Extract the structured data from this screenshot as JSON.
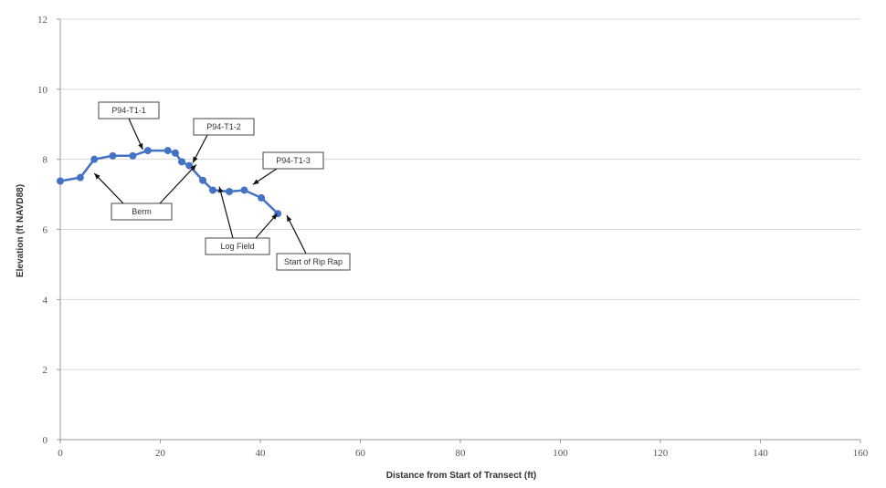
{
  "chart_data": {
    "type": "scatter",
    "title": "",
    "xlabel": "Distance from Start of Transect (ft)",
    "ylabel": "Elevation (ft NAVD88)",
    "xlim": [
      0,
      160
    ],
    "ylim": [
      0,
      12
    ],
    "x_ticks": [
      0,
      20,
      40,
      60,
      80,
      100,
      120,
      140,
      160
    ],
    "y_ticks": [
      0,
      2,
      4,
      6,
      8,
      10,
      12
    ],
    "grid": "horizontal",
    "legend": "none",
    "series_color": "#4472c4",
    "series": [
      {
        "x": [
          0,
          4,
          6.8,
          10.5,
          14.5,
          17.5,
          21.5,
          23,
          24.3,
          25.8,
          28.5,
          30.5,
          33.8,
          36.8,
          40.2,
          43.5
        ],
        "y": [
          7.38,
          7.48,
          8.0,
          8.1,
          8.1,
          8.25,
          8.25,
          8.18,
          7.93,
          7.82,
          7.4,
          7.12,
          7.08,
          7.12,
          6.9,
          6.45
        ]
      }
    ],
    "annotations": [
      {
        "text": "P94-T1-1",
        "target": [
          16.5,
          8.28
        ]
      },
      {
        "text": "P94-T1-2",
        "target": [
          26.5,
          7.9
        ]
      },
      {
        "text": "P94-T1-3",
        "target": [
          38.5,
          7.28
        ]
      },
      {
        "text": "Berm",
        "target": [
          6.8,
          7.6
        ]
      },
      {
        "text": "Berm",
        "target": [
          27.2,
          7.85
        ]
      },
      {
        "text": "Log Field",
        "target": [
          31.8,
          7.22
        ]
      },
      {
        "text": "Log Field",
        "target": [
          43.4,
          6.45
        ]
      },
      {
        "text": "Start of Rip Rap",
        "target": [
          45.3,
          6.4
        ]
      }
    ]
  }
}
